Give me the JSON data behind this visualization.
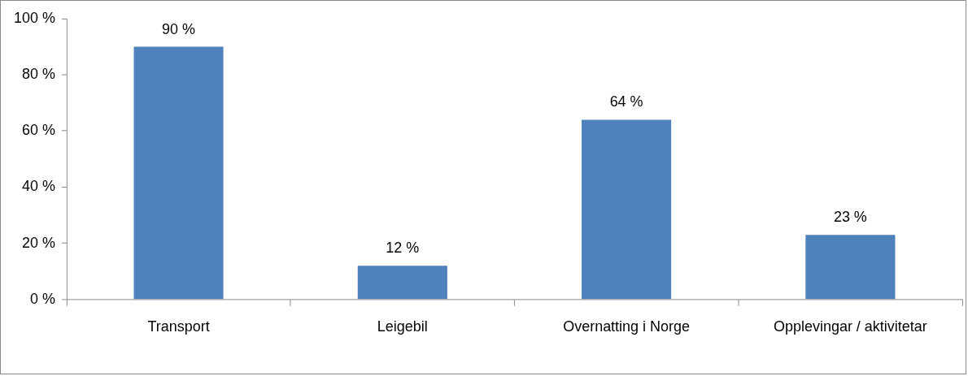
{
  "chart_data": {
    "type": "bar",
    "categories": [
      "Transport",
      "Leigebil",
      "Overnatting i Norge",
      "Opplevingar / aktivitetar"
    ],
    "values": [
      90,
      12,
      64,
      23
    ],
    "color": "#4f81bd",
    "value_labels": [
      "90 %",
      "12 %",
      "64 %",
      "23 %"
    ],
    "ylim": [
      0,
      100
    ],
    "yticks": [
      {
        "value": 0,
        "label": "0 %"
      },
      {
        "value": 20,
        "label": "20 %"
      },
      {
        "value": 40,
        "label": "40 %"
      },
      {
        "value": 60,
        "label": "60 %"
      },
      {
        "value": 80,
        "label": "80 %"
      },
      {
        "value": 100,
        "label": "100 %"
      }
    ],
    "grid": false,
    "legend": false
  }
}
